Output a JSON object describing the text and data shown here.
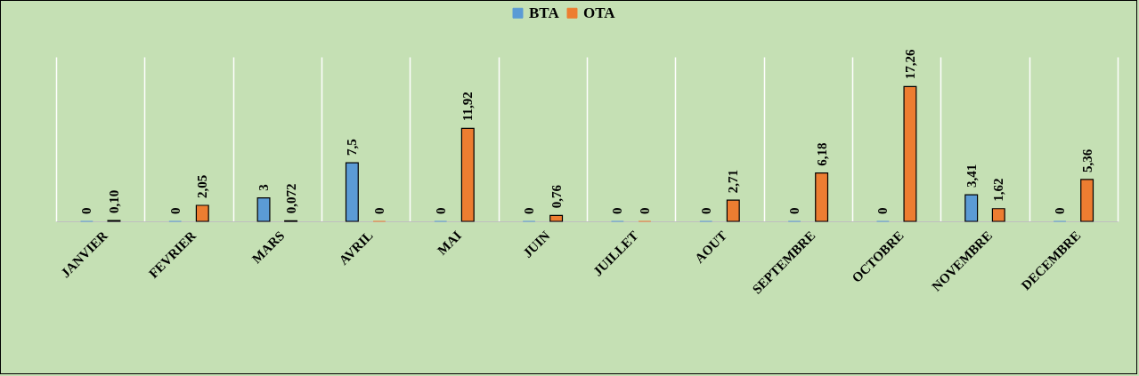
{
  "chart_data": {
    "type": "bar",
    "categories": [
      "JANVIER",
      "FEVRIER",
      "MARS",
      "AVRIL",
      "MAI",
      "JUIN",
      "JUILLET",
      "AOUT",
      "SEPTEMBRE",
      "OCTOBRE",
      "NOVEMBRE",
      "DECEMBRE"
    ],
    "series": [
      {
        "name": "BTA",
        "color": "#5b9bd5",
        "values": [
          0,
          0,
          3,
          7.5,
          0,
          0,
          0,
          0,
          0,
          0,
          3.41,
          0
        ],
        "value_labels": [
          "0",
          "0",
          "3",
          "7,5",
          "0",
          "0",
          "0",
          "0",
          "0",
          "0",
          "3,41",
          "0"
        ]
      },
      {
        "name": "OTA",
        "color": "#ed7d31",
        "values": [
          0.1,
          2.05,
          0.072,
          0,
          11.92,
          0.76,
          0,
          2.71,
          6.18,
          17.26,
          1.62,
          5.36
        ],
        "value_labels": [
          "0,10",
          "2,05",
          "0,072",
          "0",
          "11,92",
          "0,76",
          "0",
          "2,71",
          "6,18",
          "17,26",
          "1,62",
          "5,36"
        ]
      }
    ],
    "grid": "x",
    "legend": "top"
  }
}
